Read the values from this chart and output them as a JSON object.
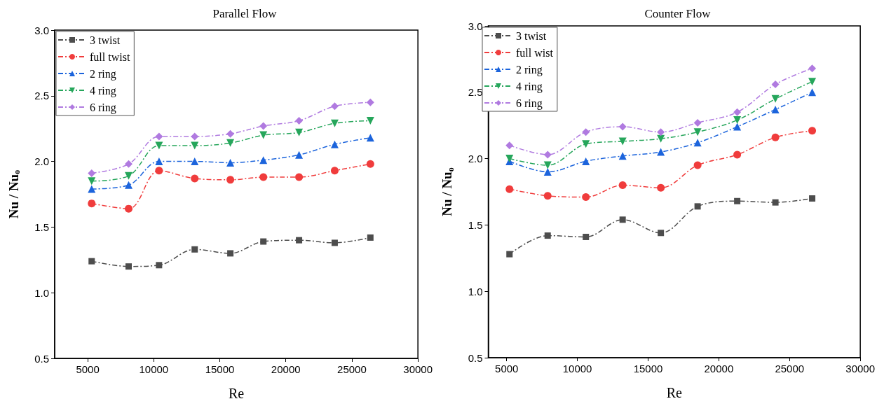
{
  "chart_data": [
    {
      "type": "line",
      "title": "Parallel Flow",
      "xlabel": "Re",
      "ylabel": "Nu / Nu$_{o}$",
      "xlim": [
        2500,
        30000
      ],
      "ylim": [
        0.5,
        3.0
      ],
      "xticks": [
        5000,
        10000,
        15000,
        20000,
        25000,
        30000
      ],
      "yticks": [
        {
          "value": 0.5,
          "label": "0.5"
        },
        {
          "value": 1,
          "label": "1.0"
        },
        {
          "value": 1.5,
          "label": "1.5"
        },
        {
          "value": 2,
          "label": "2.0"
        },
        {
          "value": 2.5,
          "label": "2.5"
        },
        {
          "value": 3,
          "label": "3.0"
        }
      ],
      "x": [
        5300,
        8100,
        10400,
        13100,
        15800,
        18300,
        21000,
        23700,
        26400
      ],
      "grid": false,
      "legend": "top left",
      "line_style": "dashed",
      "series": [
        {
          "name": "3 twist",
          "color": "#4d4d4d",
          "marker": "square",
          "values": [
            1.24,
            1.2,
            1.21,
            1.33,
            1.3,
            1.39,
            1.4,
            1.38,
            1.42
          ]
        },
        {
          "name": "full twist",
          "color": "#f03c3c",
          "marker": "circle",
          "values": [
            1.68,
            1.64,
            1.93,
            1.87,
            1.86,
            1.88,
            1.88,
            1.93,
            1.98
          ]
        },
        {
          "name": "2 ring",
          "color": "#1c64dc",
          "marker": "triangle",
          "values": [
            1.79,
            1.82,
            2.0,
            2.0,
            1.99,
            2.01,
            2.05,
            2.13,
            2.18
          ]
        },
        {
          "name": "4 ring",
          "color": "#26a65b",
          "marker": "triangle-down",
          "values": [
            1.85,
            1.89,
            2.12,
            2.12,
            2.14,
            2.2,
            2.22,
            2.29,
            2.31
          ]
        },
        {
          "name": "6 ring",
          "color": "#b07ae0",
          "marker": "diamond",
          "values": [
            1.91,
            1.98,
            2.19,
            2.19,
            2.21,
            2.27,
            2.31,
            2.42,
            2.45
          ]
        }
      ]
    },
    {
      "type": "line",
      "title": "Counter Flow",
      "xlabel": "Re",
      "ylabel": "Nu / Nu$_{o}$",
      "xlim": [
        3700,
        30000
      ],
      "ylim": [
        0.5,
        3.0
      ],
      "xticks": [
        5000,
        10000,
        15000,
        20000,
        25000,
        30000
      ],
      "yticks": [
        {
          "value": 0.5,
          "label": "0.5"
        },
        {
          "value": 1,
          "label": "1.0"
        },
        {
          "value": 1.5,
          "label": "1.5"
        },
        {
          "value": 2,
          "label": "2.0"
        },
        {
          "value": 2.5,
          "label": "2.5"
        },
        {
          "value": 3,
          "label": "3.0"
        }
      ],
      "x": [
        5200,
        7900,
        10600,
        13200,
        15900,
        18500,
        21300,
        24000,
        26600
      ],
      "grid": false,
      "legend": "top left",
      "line_style": "dashed",
      "series": [
        {
          "name": "3 twist",
          "color": "#4d4d4d",
          "marker": "square",
          "values": [
            1.28,
            1.42,
            1.41,
            1.54,
            1.44,
            1.64,
            1.68,
            1.67,
            1.7
          ]
        },
        {
          "name": "full wist",
          "color": "#f03c3c",
          "marker": "circle",
          "values": [
            1.77,
            1.72,
            1.71,
            1.8,
            1.78,
            1.95,
            2.03,
            2.16,
            2.21
          ]
        },
        {
          "name": "2 ring",
          "color": "#1c64dc",
          "marker": "triangle",
          "values": [
            1.98,
            1.9,
            1.98,
            2.02,
            2.05,
            2.12,
            2.24,
            2.37,
            2.5
          ]
        },
        {
          "name": "4 ring",
          "color": "#26a65b",
          "marker": "triangle-down",
          "values": [
            2.0,
            1.95,
            2.11,
            2.13,
            2.15,
            2.2,
            2.29,
            2.45,
            2.58
          ]
        },
        {
          "name": "6 ring",
          "color": "#b07ae0",
          "marker": "diamond",
          "values": [
            2.1,
            2.03,
            2.2,
            2.24,
            2.2,
            2.27,
            2.35,
            2.56,
            2.68
          ]
        }
      ]
    }
  ]
}
